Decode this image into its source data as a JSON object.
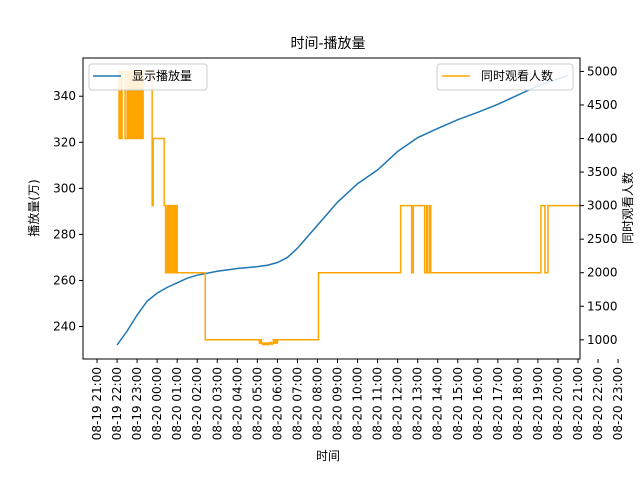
{
  "chart_data": {
    "type": "line",
    "title": "时间-播放量",
    "xlabel": "时间",
    "ylabel": "播放量(万)",
    "y2label": "同时观看人数",
    "x_domain_hours": [
      -3.7,
      21.1
    ],
    "x_tick_labels": [
      "08-19 21:00",
      "08-19 22:00",
      "08-19 23:00",
      "08-20 00:00",
      "08-20 01:00",
      "08-20 02:00",
      "08-20 03:00",
      "08-20 04:00",
      "08-20 05:00",
      "08-20 06:00",
      "08-20 07:00",
      "08-20 08:00",
      "08-20 09:00",
      "08-20 10:00",
      "08-20 11:00",
      "08-20 12:00",
      "08-20 13:00",
      "08-20 14:00",
      "08-20 15:00",
      "08-20 16:00",
      "08-20 17:00",
      "08-20 18:00",
      "08-20 19:00",
      "08-20 20:00",
      "08-20 21:00",
      "08-20 22:00",
      "08-20 23:00"
    ],
    "ylim": [
      225.9,
      356.6
    ],
    "y_ticks": [
      240,
      260,
      280,
      300,
      320,
      340
    ],
    "y2lim": [
      714,
      5200
    ],
    "y2_ticks": [
      1000,
      1500,
      2000,
      2500,
      3000,
      3500,
      4000,
      4500,
      5000
    ],
    "grid": false,
    "series": [
      {
        "name": "显示播放量",
        "axis": "left",
        "color": "#1f77b4",
        "x_hours": [
          -2.0,
          -1.5,
          -1.0,
          -0.5,
          0.0,
          0.5,
          1.0,
          1.5,
          2.0,
          3.0,
          4.0,
          5.0,
          5.5,
          6.0,
          6.5,
          7.0,
          7.5,
          8.0,
          9.0,
          10.0,
          11.0,
          12.0,
          13.0,
          14.0,
          15.0,
          16.0,
          17.0,
          18.0,
          19.0,
          20.0,
          20.5
        ],
        "values": [
          232,
          238,
          245,
          251,
          254.5,
          257,
          259,
          261,
          262.3,
          264,
          265.2,
          266,
          266.6,
          267.8,
          270,
          274,
          279,
          284,
          294,
          302,
          308,
          316,
          322,
          326,
          329.8,
          333,
          336.5,
          340.5,
          344.5,
          347.5,
          349
        ]
      },
      {
        "name": "同时观看人数",
        "axis": "right",
        "color": "#ffa500",
        "step": true,
        "x_hours": [
          -2.0,
          -1.9,
          -1.85,
          -1.8,
          -1.75,
          -1.7,
          -1.6,
          -1.5,
          -1.45,
          -1.4,
          -1.35,
          -1.3,
          -1.25,
          -1.2,
          -1.15,
          -1.1,
          -1.05,
          -1.0,
          -0.95,
          -0.9,
          -0.85,
          -0.8,
          -0.75,
          -0.7,
          -0.25,
          -0.2,
          0.35,
          0.42,
          0.5,
          0.55,
          0.6,
          0.68,
          0.75,
          0.8,
          0.85,
          0.9,
          0.95,
          1.0,
          1.1,
          2.4,
          2.45,
          5.0,
          5.1,
          5.15,
          5.2,
          5.25,
          5.3,
          5.35,
          5.4,
          5.45,
          5.5,
          5.55,
          5.6,
          5.65,
          5.7,
          5.75,
          5.8,
          5.85,
          5.9,
          5.95,
          6.0,
          6.05,
          6.1,
          6.15,
          8.0,
          8.05,
          12.1,
          12.15,
          12.65,
          12.7,
          12.78,
          12.85,
          13.3,
          13.35,
          13.45,
          13.5,
          13.6,
          13.65,
          19.1,
          19.15,
          19.3,
          19.35,
          19.5,
          19.55,
          20.6,
          20.65,
          20.7,
          21.0,
          21.15,
          21.2,
          21.25,
          21.5,
          21.55,
          21.6,
          21.7,
          21.8,
          22.0
        ],
        "values": [
          5000,
          4000,
          5000,
          4000,
          5000,
          5000,
          4000,
          5000,
          4000,
          5000,
          4000,
          5000,
          4000,
          5000,
          4000,
          5000,
          4000,
          5000,
          4000,
          5000,
          4000,
          5000,
          4000,
          5000,
          3000,
          4000,
          3000,
          2000,
          3000,
          2000,
          3000,
          2000,
          3000,
          2000,
          3000,
          2000,
          3000,
          2000,
          2000,
          1000,
          1000,
          1000,
          950,
          1000,
          950,
          930,
          950,
          930,
          950,
          930,
          950,
          930,
          950,
          960,
          930,
          950,
          1000,
          950,
          1000,
          950,
          1000,
          1000,
          1000,
          1000,
          1000,
          2000,
          2000,
          3000,
          3000,
          2000,
          3000,
          3000,
          3000,
          2000,
          3000,
          2000,
          3000,
          2000,
          2000,
          3000,
          3000,
          2000,
          3000,
          3000,
          3000,
          3000,
          3000,
          3000,
          2000,
          3000,
          3000,
          3000,
          1000,
          3000,
          2000,
          1000,
          3000
        ]
      }
    ],
    "legends": [
      {
        "placement": "upper-left",
        "entries": [
          "显示播放量"
        ]
      },
      {
        "placement": "upper-right",
        "entries": [
          "同时观看人数"
        ]
      }
    ]
  }
}
